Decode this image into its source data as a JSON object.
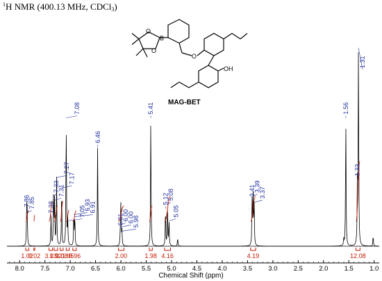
{
  "title": {
    "sup": "1",
    "main": "H NMR (400.13 MHz, CDCl",
    "sub": "3",
    "close": ")"
  },
  "compound_label": "MAG-BET",
  "structure_atoms": {
    "boron": "B",
    "ring_oxygen_1": "O",
    "ring_oxygen_2": "O",
    "ether_oxygen": "O",
    "hydroxyl": "OH"
  },
  "colors": {
    "spectrum": "#000000",
    "peak_label": "#1f2f9e",
    "integral": "#c41a00",
    "integral_value": "#c41a00"
  },
  "chart_data": {
    "type": "line",
    "xlabel": "Chemical Shift (ppm)",
    "xlim": [
      8.25,
      0.9
    ],
    "x_reversed": true,
    "x_ticks": [
      "8.0",
      "7.5",
      "7.0",
      "6.5",
      "6.0",
      "5.5",
      "5.0",
      "4.5",
      "4.0",
      "3.5",
      "3.0",
      "2.5",
      "2.0",
      "1.5",
      "1.0"
    ],
    "grid": false,
    "peaks": [
      {
        "shift": 7.86,
        "height": 0.17,
        "label": "7.86"
      },
      {
        "shift": 7.85,
        "height": 0.16,
        "label": "7.85"
      },
      {
        "shift": 7.38,
        "height": 0.14,
        "label": "7.38"
      },
      {
        "shift": 7.33,
        "height": 0.24,
        "label": "7.33"
      },
      {
        "shift": 7.31,
        "height": 0.22,
        "label": "7.31"
      },
      {
        "shift": 7.27,
        "height": 0.33,
        "label": "7.27"
      },
      {
        "shift": 7.17,
        "height": 0.28,
        "label": "7.17"
      },
      {
        "shift": 7.08,
        "height": 0.62,
        "label": "7.08"
      },
      {
        "shift": 7.05,
        "height": 0.12,
        "label": "7.05"
      },
      {
        "shift": 6.93,
        "height": 0.15,
        "label": "6.93"
      },
      {
        "shift": 6.91,
        "height": 0.14,
        "label": "6.91"
      },
      {
        "shift": 6.46,
        "height": 0.48,
        "label": "6.46"
      },
      {
        "shift": 6.01,
        "height": 0.08,
        "label": "6.01"
      },
      {
        "shift": 6.0,
        "height": 0.1,
        "label": "6.00"
      },
      {
        "shift": 6.0,
        "height": 0.09,
        "label": "6.00"
      },
      {
        "shift": 5.98,
        "height": 0.07,
        "label": "5.98"
      },
      {
        "shift": 5.41,
        "height": 0.62,
        "label": "5.41"
      },
      {
        "shift": 5.12,
        "height": 0.18,
        "label": "5.12"
      },
      {
        "shift": 5.08,
        "height": 0.2,
        "label": "5.08"
      },
      {
        "shift": 5.05,
        "height": 0.12,
        "label": "5.05"
      },
      {
        "shift": 3.41,
        "height": 0.22,
        "label": "3.41"
      },
      {
        "shift": 3.39,
        "height": 0.24,
        "label": "3.39"
      },
      {
        "shift": 3.37,
        "height": 0.21,
        "label": "3.37"
      },
      {
        "shift": 1.56,
        "height": 0.62,
        "label": "1.56"
      },
      {
        "shift": 1.33,
        "height": 0.32,
        "label": "1.33"
      },
      {
        "shift": 1.31,
        "height": 0.96,
        "label": "1.31"
      }
    ],
    "unlabeled_peaks": [
      {
        "shift": 4.88,
        "height": 0.04
      },
      {
        "shift": 1.6,
        "height": 0.03
      },
      {
        "shift": 1.02,
        "height": 0.05
      }
    ],
    "integrals": [
      {
        "from": 7.88,
        "to": 7.82,
        "value": "1.02"
      },
      {
        "from": 7.72,
        "to": 7.7,
        "value": "0.02"
      },
      {
        "from": 7.42,
        "to": 7.35,
        "value": "3.03"
      },
      {
        "from": 7.32,
        "to": 7.25,
        "value": "1.92"
      },
      {
        "from": 7.2,
        "to": 7.14,
        "value": "3.08"
      },
      {
        "from": 7.08,
        "to": 7.02,
        "value": "1.05"
      },
      {
        "from": 6.95,
        "to": 6.88,
        "value": "0.96"
      },
      {
        "from": 6.05,
        "to": 5.94,
        "value": "2.00"
      },
      {
        "from": 5.44,
        "to": 5.38,
        "value": "1.98"
      },
      {
        "from": 5.14,
        "to": 5.02,
        "value": "4.16"
      },
      {
        "from": 3.44,
        "to": 3.34,
        "value": "4.19"
      },
      {
        "from": 1.36,
        "to": 1.28,
        "value": "12.08"
      }
    ]
  }
}
